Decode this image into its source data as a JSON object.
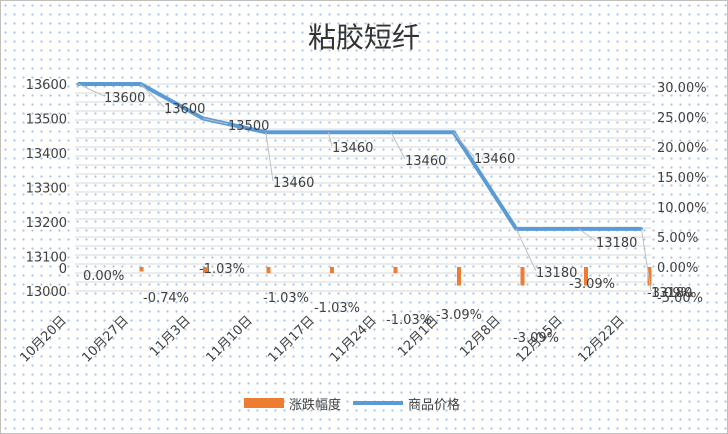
{
  "chart_data": {
    "type": "line+bar",
    "title": "粘胶短纤",
    "categories": [
      "10月20日",
      "10月27日",
      "11月3日",
      "11月10日",
      "11月17日",
      "11月24日",
      "12月1日",
      "12月8日",
      "12月15日",
      "12月22日"
    ],
    "y_left": {
      "min": 13000,
      "max": 13600,
      "ticks": [
        13000,
        13100,
        13200,
        13300,
        13400,
        13500,
        13600
      ],
      "zero_label": "0"
    },
    "y_right": {
      "min": -5,
      "max": 30,
      "ticks": [
        "-5.00%",
        "0.00%",
        "5.00%",
        "10.00%",
        "15.00%",
        "20.00%",
        "25.00%",
        "30.00%"
      ]
    },
    "series": [
      {
        "name": "涨跌幅度",
        "type": "bar",
        "color": "#ed7d31",
        "values": [
          0,
          -0.74,
          -1.03,
          -1.03,
          -1.03,
          -1.03,
          -3.09,
          -3.09,
          -3.09,
          -3.09
        ],
        "labels": [
          "0.00%",
          "-0.74%",
          "-1.03%",
          "-1.03%",
          "-1.03%",
          "-1.03%",
          "-3.09%",
          "-3.09%",
          "-3.09%",
          "-3.09%"
        ]
      },
      {
        "name": "商品价格",
        "type": "line",
        "color": "#5b9bd5",
        "values": [
          13600,
          13600,
          13500,
          13460,
          13460,
          13460,
          13460,
          13180,
          13180,
          13180
        ],
        "labels": [
          "13600",
          "13600",
          "13500",
          "13460",
          "13460",
          "13460",
          "13460",
          "13180",
          "13180",
          "13180"
        ]
      }
    ],
    "legend_position": "bottom",
    "grid": true
  }
}
